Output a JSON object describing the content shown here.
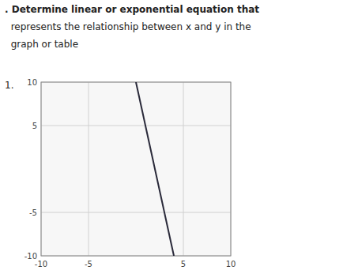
{
  "chart_data": {
    "type": "line",
    "title": ". Determine linear or exponential equation that",
    "subtitle": [
      "  represents the relationship between x and y in the",
      "  graph or table"
    ],
    "annotations": [
      "1."
    ],
    "x": [
      0,
      4
    ],
    "values": [
      10,
      -10
    ],
    "color": "#2a2a3a",
    "xlim": [
      -10,
      10
    ],
    "ylim": [
      -10,
      10
    ],
    "xticks": [
      -10,
      -5,
      5,
      10
    ],
    "yticks": [
      -10,
      -5,
      5,
      10
    ],
    "grid": true
  }
}
